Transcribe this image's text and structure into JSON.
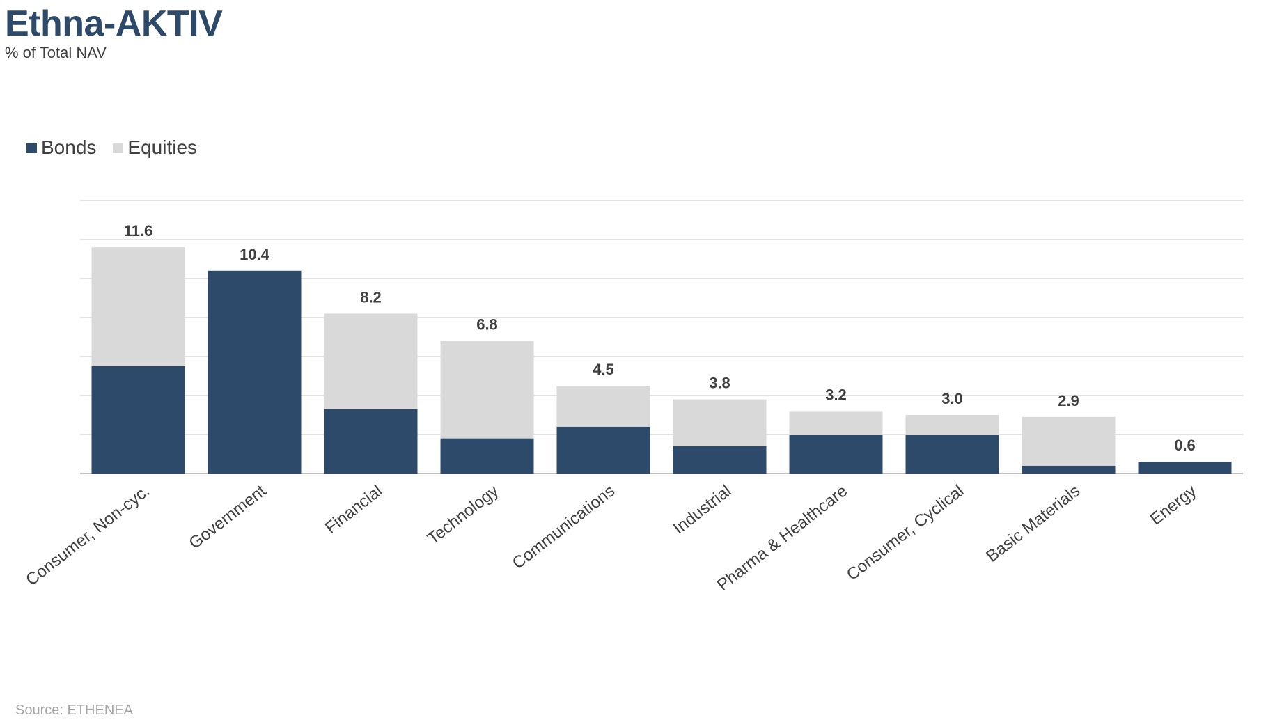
{
  "header": {
    "title": "Ethna-AKTIV",
    "subtitle": "% of Total NAV"
  },
  "legend": {
    "items": [
      {
        "label": "Bonds",
        "color": "#2e4a6a"
      },
      {
        "label": "Equities",
        "color": "#d9d9d9"
      }
    ]
  },
  "footer": {
    "source": "Source: ETHENEA"
  },
  "chart_data": {
    "type": "bar",
    "stacked": true,
    "categories": [
      "Consumer, Non-cyc.",
      "Government",
      "Financial",
      "Technology",
      "Communications",
      "Industrial",
      "Pharma & Healthcare",
      "Consumer, Cyclical",
      "Basic Materials",
      "Energy"
    ],
    "series": [
      {
        "name": "Bonds",
        "color": "#2e4a6a",
        "values": [
          5.5,
          10.4,
          3.3,
          1.8,
          2.4,
          1.4,
          2.0,
          2.0,
          0.4,
          0.6
        ]
      },
      {
        "name": "Equities",
        "color": "#d9d9d9",
        "values": [
          6.1,
          0.0,
          4.9,
          5.0,
          2.1,
          2.4,
          1.2,
          1.0,
          2.5,
          0.0
        ]
      }
    ],
    "totals": [
      "11.6",
      "10.4",
      "8.2",
      "6.8",
      "4.5",
      "3.8",
      "3.2",
      "3.0",
      "2.9",
      "0.6"
    ],
    "ylim": [
      0,
      14
    ],
    "grid": true,
    "legend_position": "top-left"
  }
}
